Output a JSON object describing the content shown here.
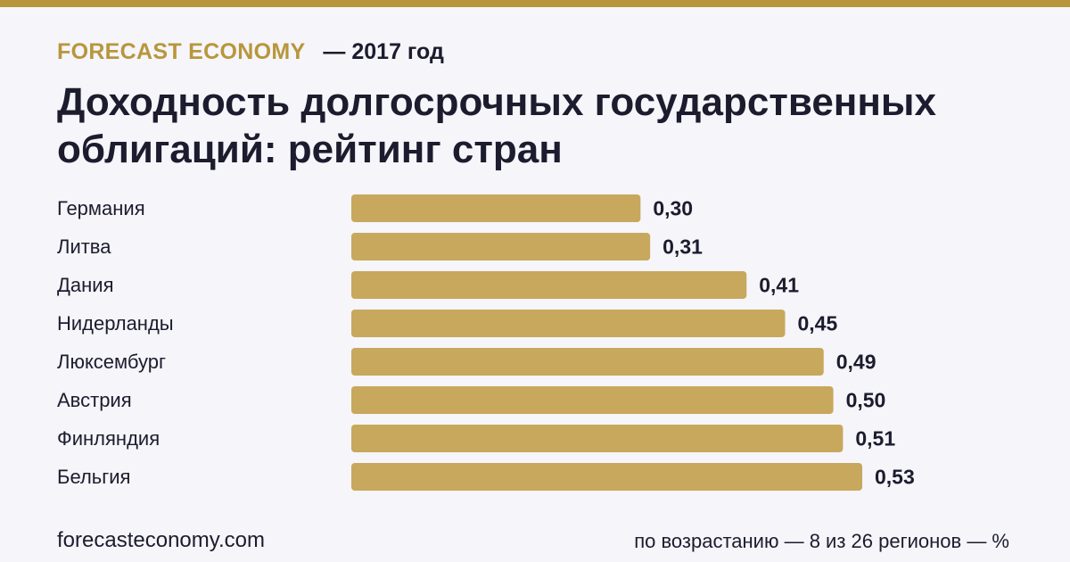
{
  "header": {
    "brand": "FORECAST ECONOMY",
    "year": "— 2017 год"
  },
  "title": "Доходность долгосрочных государственных облигаций: рейтинг стран",
  "footer": {
    "site": "forecasteconomy.com",
    "note": "по возрастанию — 8 из 26 регионов — %"
  },
  "colors": {
    "accent": "#b8963c",
    "bar": "#c7a85c",
    "text": "#1c1c2e",
    "background": "#f5f5fa"
  },
  "chart_data": {
    "type": "bar",
    "orientation": "horizontal",
    "categories": [
      "Германия",
      "Литва",
      "Дания",
      "Нидерланды",
      "Люксембург",
      "Австрия",
      "Финляндия",
      "Бельгия"
    ],
    "values": [
      0.3,
      0.31,
      0.41,
      0.45,
      0.49,
      0.5,
      0.51,
      0.53
    ],
    "value_labels": [
      "0,30",
      "0,31",
      "0,41",
      "0,45",
      "0,49",
      "0,50",
      "0,51",
      "0,53"
    ],
    "xlim": [
      0,
      0.53
    ],
    "grid": false,
    "legend": "none"
  }
}
